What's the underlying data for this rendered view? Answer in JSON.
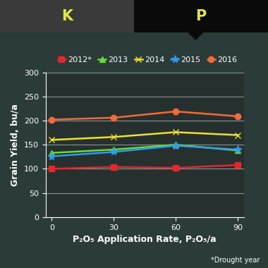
{
  "chart_data": {
    "type": "line",
    "header_tabs": [
      "K",
      "P"
    ],
    "x_label": "P₂O₅ Application Rate, P₂O₅/a",
    "y_label": "Grain Yield, bu/a",
    "footnote": "*Drought year",
    "x": [
      0,
      30,
      60,
      90
    ],
    "xlim": [
      -3,
      93
    ],
    "xticks": [
      0,
      30,
      60,
      90
    ],
    "ylim": [
      0,
      300
    ],
    "yticks": [
      0,
      50,
      100,
      150,
      200,
      250,
      300
    ],
    "grid": true,
    "legend": "upper center",
    "series": [
      {
        "name": "2012*",
        "color": "#e8262a",
        "marker": "square",
        "values": [
          100,
          104,
          102,
          108
        ]
      },
      {
        "name": "2013",
        "color": "#66dd33",
        "marker": "triangle",
        "values": [
          133,
          140,
          150,
          138
        ]
      },
      {
        "name": "2014",
        "color": "#f0e030",
        "marker": "x",
        "values": [
          160,
          166,
          176,
          170
        ]
      },
      {
        "name": "2015",
        "color": "#3399ee",
        "marker": "star",
        "values": [
          126,
          135,
          148,
          140
        ]
      },
      {
        "name": "2016",
        "color": "#f26b3a",
        "marker": "circle",
        "values": [
          202,
          206,
          219,
          209
        ]
      }
    ]
  }
}
